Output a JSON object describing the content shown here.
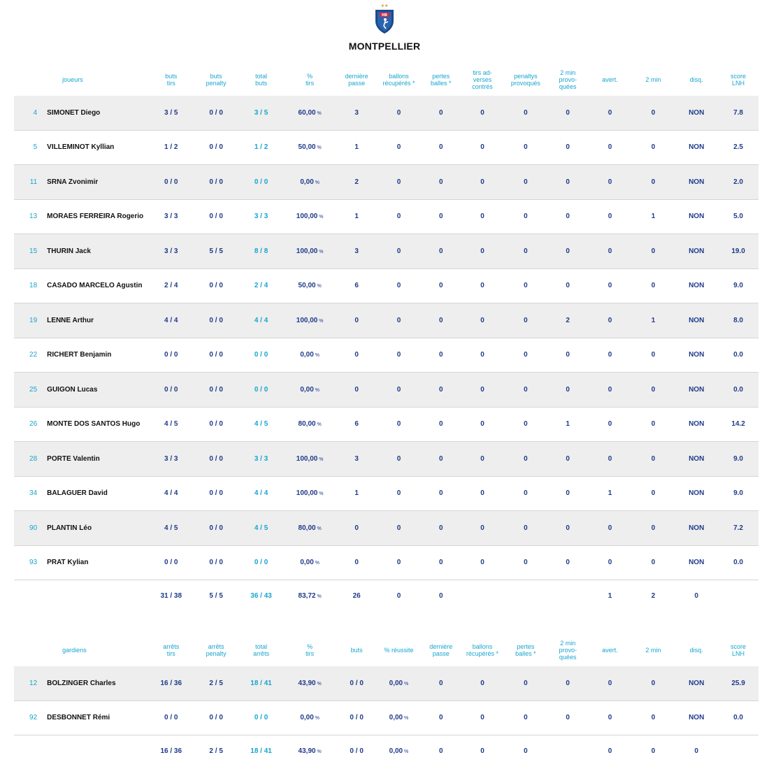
{
  "team": {
    "name": "MONTPELLIER",
    "logo_text": "HB"
  },
  "colors": {
    "accent": "#17a5cf",
    "value": "#1f3a8a",
    "row_alt": "#eeeeee",
    "logo": "#1b4b8a"
  },
  "players": {
    "headers": [
      "",
      "joueurs",
      "buts\ntirs",
      "buts\npenalty",
      "total\nbuts",
      "%\ntirs",
      "dernière\npasse",
      "ballons\nrécupérés *",
      "pertes\nballes *",
      "tirs ad-\nverses\ncontrés",
      "penaltys\nprovoqués",
      "2 min\nprovo-\nquées",
      "avert.",
      "2 min",
      "disq.",
      "score\nLNH"
    ],
    "rows": [
      [
        "4",
        "SIMONET Diego",
        "3 / 5",
        "0 / 0",
        "3 / 5",
        "60,00",
        "3",
        "0",
        "0",
        "0",
        "0",
        "0",
        "0",
        "0",
        "NON",
        "7.8"
      ],
      [
        "5",
        "VILLEMINOT Kyllian",
        "1 / 2",
        "0 / 0",
        "1 / 2",
        "50,00",
        "1",
        "0",
        "0",
        "0",
        "0",
        "0",
        "0",
        "0",
        "NON",
        "2.5"
      ],
      [
        "11",
        "SRNA Zvonimir",
        "0 / 0",
        "0 / 0",
        "0 / 0",
        "0,00",
        "2",
        "0",
        "0",
        "0",
        "0",
        "0",
        "0",
        "0",
        "NON",
        "2.0"
      ],
      [
        "13",
        "MORAES FERREIRA Rogerio",
        "3 / 3",
        "0 / 0",
        "3 / 3",
        "100,00",
        "1",
        "0",
        "0",
        "0",
        "0",
        "0",
        "0",
        "1",
        "NON",
        "5.0"
      ],
      [
        "15",
        "THURIN Jack",
        "3 / 3",
        "5 / 5",
        "8 / 8",
        "100,00",
        "3",
        "0",
        "0",
        "0",
        "0",
        "0",
        "0",
        "0",
        "NON",
        "19.0"
      ],
      [
        "18",
        "CASADO MARCELO Agustin",
        "2 / 4",
        "0 / 0",
        "2 / 4",
        "50,00",
        "6",
        "0",
        "0",
        "0",
        "0",
        "0",
        "0",
        "0",
        "NON",
        "9.0"
      ],
      [
        "19",
        "LENNE Arthur",
        "4 / 4",
        "0 / 0",
        "4 / 4",
        "100,00",
        "0",
        "0",
        "0",
        "0",
        "0",
        "2",
        "0",
        "1",
        "NON",
        "8.0"
      ],
      [
        "22",
        "RICHERT Benjamin",
        "0 / 0",
        "0 / 0",
        "0 / 0",
        "0,00",
        "0",
        "0",
        "0",
        "0",
        "0",
        "0",
        "0",
        "0",
        "NON",
        "0.0"
      ],
      [
        "25",
        "GUIGON Lucas",
        "0 / 0",
        "0 / 0",
        "0 / 0",
        "0,00",
        "0",
        "0",
        "0",
        "0",
        "0",
        "0",
        "0",
        "0",
        "NON",
        "0.0"
      ],
      [
        "26",
        "MONTE DOS SANTOS Hugo",
        "4 / 5",
        "0 / 0",
        "4 / 5",
        "80,00",
        "6",
        "0",
        "0",
        "0",
        "0",
        "1",
        "0",
        "0",
        "NON",
        "14.2"
      ],
      [
        "28",
        "PORTE Valentin",
        "3 / 3",
        "0 / 0",
        "3 / 3",
        "100,00",
        "3",
        "0",
        "0",
        "0",
        "0",
        "0",
        "0",
        "0",
        "NON",
        "9.0"
      ],
      [
        "34",
        "BALAGUER David",
        "4 / 4",
        "0 / 0",
        "4 / 4",
        "100,00",
        "1",
        "0",
        "0",
        "0",
        "0",
        "0",
        "1",
        "0",
        "NON",
        "9.0"
      ],
      [
        "90",
        "PLANTIN Léo",
        "4 / 5",
        "0 / 0",
        "4 / 5",
        "80,00",
        "0",
        "0",
        "0",
        "0",
        "0",
        "0",
        "0",
        "0",
        "NON",
        "7.2"
      ],
      [
        "93",
        "PRAT Kylian",
        "0 / 0",
        "0 / 0",
        "0 / 0",
        "0,00",
        "0",
        "0",
        "0",
        "0",
        "0",
        "0",
        "0",
        "0",
        "NON",
        "0.0"
      ]
    ],
    "totals": [
      "",
      "",
      "31 / 38",
      "5 / 5",
      "36 / 43",
      "83,72",
      "26",
      "0",
      "0",
      "",
      "",
      "",
      "1",
      "2",
      "0",
      ""
    ]
  },
  "goalies": {
    "headers": [
      "",
      "gardiens",
      "arrêts\ntirs",
      "arrêts\npenalty",
      "total\narrêts",
      "%\ntirs",
      "buts",
      "% réussite",
      "dernière\npasse",
      "ballons\nrécupérés *",
      "pertes\nballes *",
      "2 min\nprovo-\nquées",
      "avert.",
      "2 min",
      "disq.",
      "score\nLNH"
    ],
    "rows": [
      [
        "12",
        "BOLZINGER Charles",
        "16 / 36",
        "2 / 5",
        "18 / 41",
        "43,90",
        "0 / 0",
        "0,00",
        "0",
        "0",
        "0",
        "0",
        "0",
        "0",
        "NON",
        "25.9"
      ],
      [
        "92",
        "DESBONNET Rémi",
        "0 / 0",
        "0 / 0",
        "0 / 0",
        "0,00",
        "0 / 0",
        "0,00",
        "0",
        "0",
        "0",
        "0",
        "0",
        "0",
        "NON",
        "0.0"
      ]
    ],
    "totals": [
      "",
      "",
      "16 / 36",
      "2 / 5",
      "18 / 41",
      "43,90",
      "0 / 0",
      "0,00",
      "0",
      "0",
      "0",
      "",
      "0",
      "0",
      "0",
      ""
    ]
  }
}
